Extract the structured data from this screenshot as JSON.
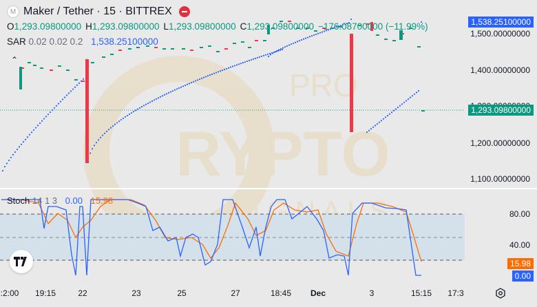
{
  "header": {
    "symbol_badge": "M",
    "title": "Maker / Tether · 15 · BITTREX"
  },
  "ohlc": {
    "o_key": "O",
    "o_val": "1,293.09800000",
    "h_key": "H",
    "h_val": "1,293.09800000",
    "l_key": "L",
    "l_val": "1,293.09800000",
    "c_key": "C",
    "c_val": "1,293.09800000",
    "change": "−176.08700000 (−11.99%)"
  },
  "sar": {
    "name": "SAR",
    "params": "0.02 0.02 0.2",
    "value": "1,538.25100000"
  },
  "stoch": {
    "name": "Stoch",
    "params": "14 1 3",
    "k_value": "0.00",
    "d_value": "15.98"
  },
  "price_axis": [
    "1,500.00000000",
    "1,400.00000000",
    "1,300.00000000",
    "1,200.00000000",
    "1,100.00000000"
  ],
  "price_tags": {
    "sar": "1,538.25100000",
    "last": "1,293.09800000"
  },
  "stoch_axis": [
    "80.00",
    "40.00"
  ],
  "stoch_tags": {
    "d": "15.98",
    "k": "0.00"
  },
  "time_axis": [
    ":2:00",
    "19:15",
    "22",
    "23",
    "25",
    "27",
    "18:45",
    "Dec",
    "3",
    "15:15",
    "17:3"
  ],
  "watermark": "PRO CRYPTO SIGNALS",
  "colors": {
    "up": "#089981",
    "down": "#f23645",
    "sar": "#2962ff",
    "k": "#2962ff",
    "d": "#ff6d00",
    "band": "#d5e1ea"
  },
  "chart_data": {
    "type": "candlestick",
    "price_ylim": [
      1060,
      1560
    ],
    "stoch_ylim": [
      0,
      100
    ],
    "last_price": 1293.098,
    "sar_last": 1538.251,
    "stoch_k_last": 0.0,
    "stoch_d_last": 15.98,
    "stoch_bands": [
      80,
      50,
      20
    ]
  }
}
